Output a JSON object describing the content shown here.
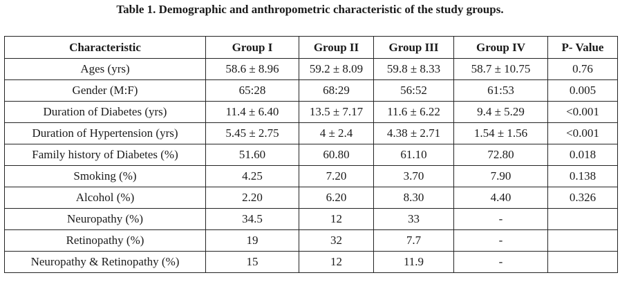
{
  "caption": "Table 1. Demographic and anthropometric characteristic of the study groups.",
  "table": {
    "headers": [
      "Characteristic",
      "Group I",
      "Group II",
      "Group III",
      "Group IV",
      "P- Value"
    ],
    "rows": [
      [
        "Ages (yrs)",
        "58.6 ± 8.96",
        "59.2 ± 8.09",
        "59.8 ± 8.33",
        "58.7 ± 10.75",
        "0.76"
      ],
      [
        "Gender (M:F)",
        "65:28",
        "68:29",
        "56:52",
        "61:53",
        "0.005"
      ],
      [
        "Duration of Diabetes (yrs)",
        "11.4 ± 6.40",
        "13.5 ± 7.17",
        "11.6 ± 6.22",
        "9.4 ± 5.29",
        "<0.001"
      ],
      [
        "Duration of Hypertension (yrs)",
        "5.45 ± 2.75",
        "4 ± 2.4",
        "4.38 ± 2.71",
        "1.54 ± 1.56",
        "<0.001"
      ],
      [
        "Family history of Diabetes (%)",
        "51.60",
        "60.80",
        "61.10",
        "72.80",
        "0.018"
      ],
      [
        "Smoking (%)",
        "4.25",
        "7.20",
        "3.70",
        "7.90",
        "0.138"
      ],
      [
        "Alcohol (%)",
        "2.20",
        "6.20",
        "8.30",
        "4.40",
        "0.326"
      ],
      [
        "Neuropathy (%)",
        "34.5",
        "12",
        "33",
        "-",
        ""
      ],
      [
        "Retinopathy (%)",
        "19",
        "32",
        "7.7",
        "-",
        ""
      ],
      [
        "Neuropathy & Retinopathy (%)",
        "15",
        "12",
        "11.9",
        "-",
        ""
      ]
    ]
  }
}
